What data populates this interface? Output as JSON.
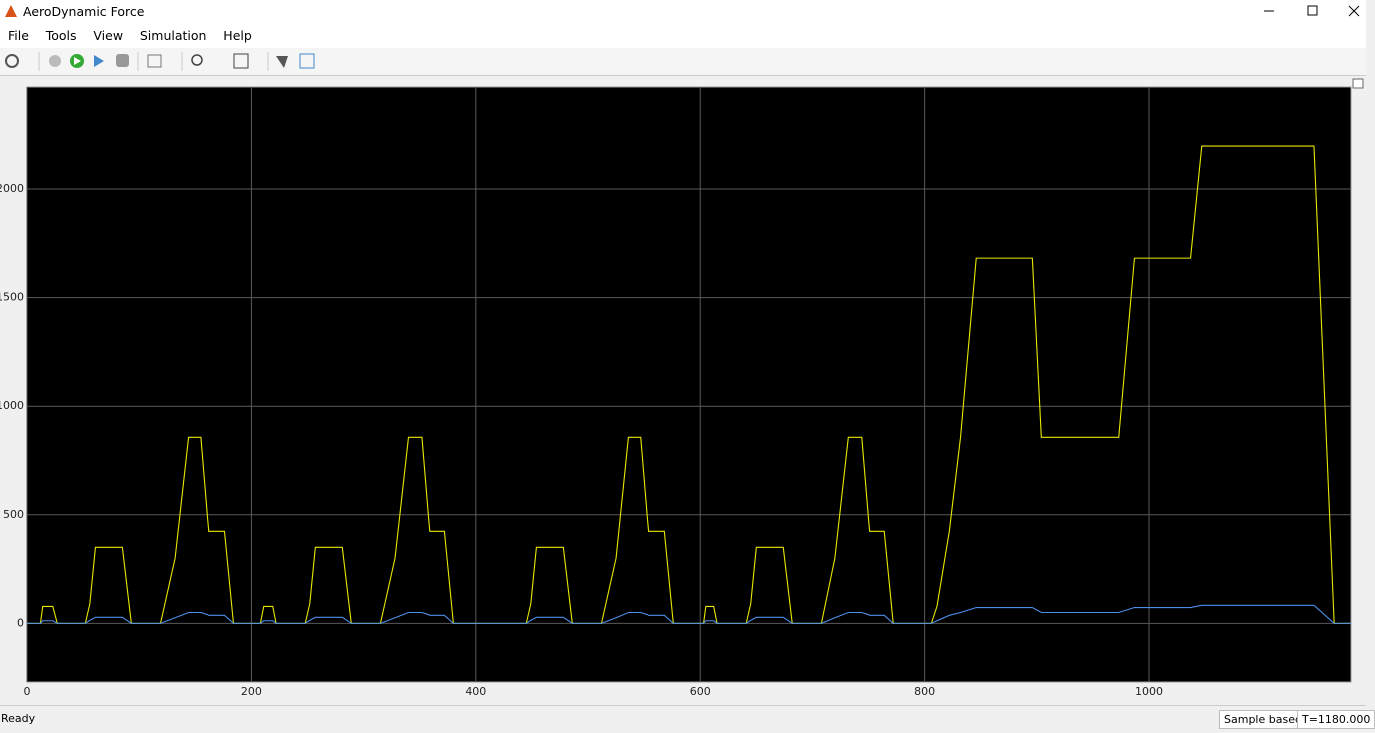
{
  "window": {
    "title": "AeroDynamic Force",
    "menu": [
      "File",
      "Tools",
      "View",
      "Simulation",
      "Help"
    ]
  },
  "status": {
    "state": "Ready",
    "mode": "Sample based",
    "time": "T=1180.000"
  },
  "chart_data": {
    "type": "line",
    "x": [
      0,
      12,
      14,
      23,
      27,
      52,
      56,
      61,
      85,
      93,
      119,
      132,
      144,
      155,
      161,
      162,
      176,
      184,
      208,
      211,
      219,
      222,
      248,
      252,
      257,
      281,
      289,
      315,
      328,
      340,
      352,
      358,
      359,
      372,
      380,
      445,
      449,
      454,
      478,
      486,
      512,
      525,
      536,
      547,
      553,
      554,
      568,
      576,
      603,
      605,
      612,
      615,
      641,
      645,
      650,
      674,
      682,
      708,
      720,
      732,
      744,
      750,
      751,
      764,
      772,
      806,
      811,
      822,
      832,
      846,
      896,
      904,
      973,
      987,
      1037,
      1047,
      1147,
      1165,
      1180
    ],
    "series": [
      {
        "color": "#e8e800",
        "values": [
          0,
          0,
          78,
          78,
          0,
          0,
          90,
          350,
          350,
          0,
          0,
          300,
          857,
          857,
          480,
          424,
          424,
          0,
          0,
          78,
          78,
          0,
          0,
          90,
          350,
          350,
          0,
          0,
          300,
          857,
          857,
          480,
          424,
          424,
          0,
          0,
          90,
          350,
          350,
          0,
          0,
          300,
          857,
          857,
          480,
          424,
          424,
          0,
          0,
          78,
          78,
          0,
          0,
          90,
          350,
          350,
          0,
          0,
          300,
          857,
          857,
          480,
          424,
          424,
          0,
          0,
          78,
          424,
          857,
          1682,
          1682,
          857,
          857,
          1682,
          1682,
          2198,
          2198,
          0,
          0
        ]
      },
      {
        "color": "#4d8fe8",
        "values": [
          0,
          0,
          12,
          12,
          0,
          0,
          14,
          28,
          28,
          0,
          0,
          26,
          50,
          50,
          40,
          37,
          37,
          0,
          0,
          12,
          12,
          0,
          0,
          14,
          28,
          28,
          0,
          0,
          26,
          50,
          50,
          40,
          37,
          37,
          0,
          0,
          14,
          28,
          28,
          0,
          0,
          26,
          50,
          50,
          40,
          37,
          37,
          0,
          0,
          12,
          12,
          0,
          0,
          14,
          28,
          28,
          0,
          0,
          26,
          50,
          50,
          40,
          37,
          37,
          0,
          0,
          12,
          37,
          50,
          73,
          73,
          50,
          50,
          73,
          73,
          83,
          83,
          0,
          0
        ]
      }
    ],
    "xlim": [
      0,
      1180
    ],
    "xticks": [
      0,
      200,
      400,
      600,
      800,
      1000
    ],
    "ylim": [
      -270,
      2470
    ],
    "yticks": [
      0,
      500,
      1000,
      1500,
      2000
    ],
    "grid": true
  }
}
